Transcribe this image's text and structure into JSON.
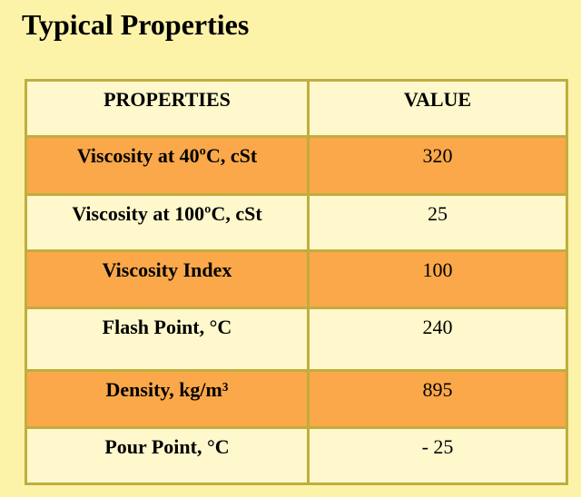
{
  "title": "Typical Properties",
  "table": {
    "headers": [
      "PROPERTIES",
      "VALUE"
    ],
    "rows": [
      {
        "property": "Viscosity at 40ºC, cSt",
        "value": "320",
        "shade": "orange"
      },
      {
        "property": "Viscosity at 100ºC, cSt",
        "value": "25",
        "shade": "light"
      },
      {
        "property": "Viscosity Index",
        "value": "100",
        "shade": "orange"
      },
      {
        "property": "Flash Point, °C",
        "value": "240",
        "shade": "light"
      },
      {
        "property": "Density, kg/m³",
        "value": "895",
        "shade": "orange"
      },
      {
        "property": "Pour Point, °C",
        "value": "- 25",
        "shade": "light"
      }
    ]
  },
  "colors": {
    "background": "#fdf3a8",
    "light_cell": "#fff8cc",
    "orange_cell": "#fba84a",
    "border": "#c0ad3e"
  }
}
